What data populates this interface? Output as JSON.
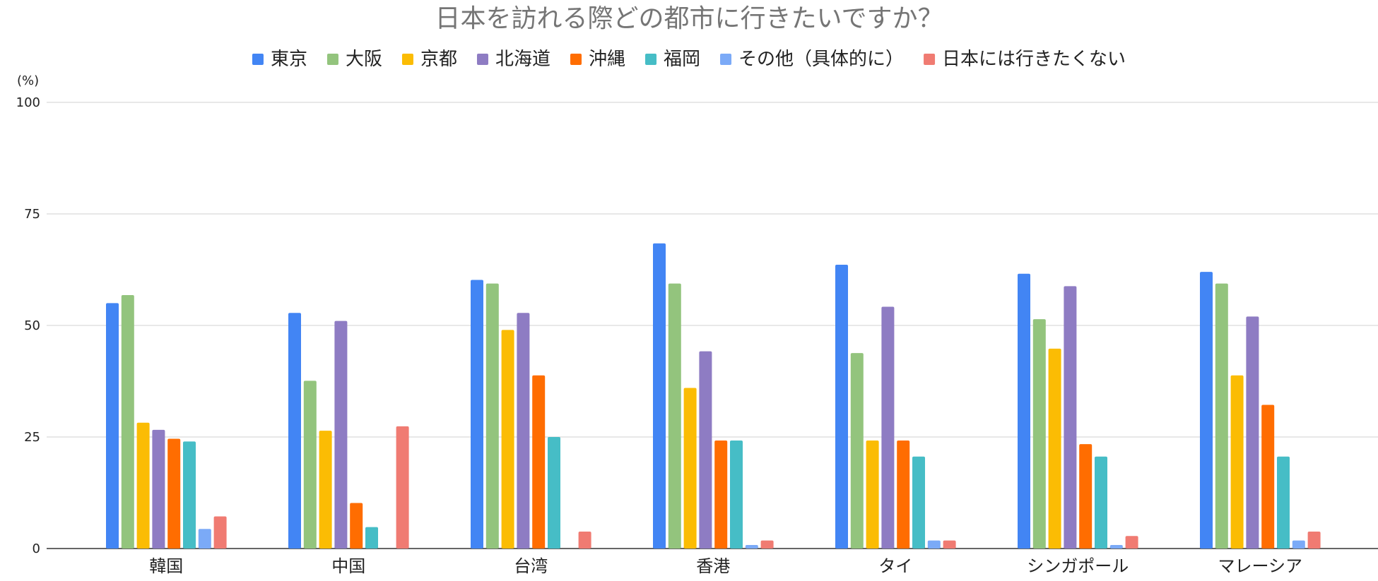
{
  "chart_data": {
    "type": "bar",
    "title": "日本を訪れる際どの都市に行きたいですか？",
    "ylabel": "(%)",
    "xlabel": "",
    "ylim": [
      0,
      100
    ],
    "yticks": [
      0,
      25,
      50,
      75,
      100
    ],
    "grid": true,
    "legend_position": "top",
    "categories": [
      "韓国",
      "中国",
      "台湾",
      "香港",
      "タイ",
      "シンガポール",
      "マレーシア"
    ],
    "series": [
      {
        "name": "東京",
        "color": "#4285F4",
        "values": [
          55,
          52.8,
          60.2,
          68.4,
          63.6,
          61.6,
          62
        ]
      },
      {
        "name": "大阪",
        "color": "#93C47D",
        "values": [
          56.8,
          37.6,
          59.4,
          59.4,
          43.8,
          51.4,
          59.4
        ]
      },
      {
        "name": "京都",
        "color": "#FBBC04",
        "values": [
          28.2,
          26.4,
          49,
          36,
          24.2,
          44.8,
          38.8
        ]
      },
      {
        "name": "北海道",
        "color": "#8E7CC3",
        "values": [
          26.6,
          51,
          52.8,
          44.2,
          54.2,
          58.8,
          52
        ]
      },
      {
        "name": "沖縄",
        "color": "#FF6D01",
        "values": [
          24.6,
          10.2,
          38.8,
          24.2,
          24.2,
          23.4,
          32.2
        ]
      },
      {
        "name": "福岡",
        "color": "#46BDC6",
        "values": [
          24,
          4.8,
          25,
          24.2,
          20.6,
          20.6,
          20.6
        ]
      },
      {
        "name": "その他（具体的に）",
        "color": "#7BAAF7",
        "values": [
          4.4,
          0,
          0,
          0.8,
          1.8,
          0.8,
          1.8
        ]
      },
      {
        "name": "日本には行きたくない",
        "color": "#F07B72",
        "values": [
          7.2,
          27.4,
          3.8,
          1.8,
          1.8,
          2.8,
          3.8
        ]
      }
    ]
  }
}
